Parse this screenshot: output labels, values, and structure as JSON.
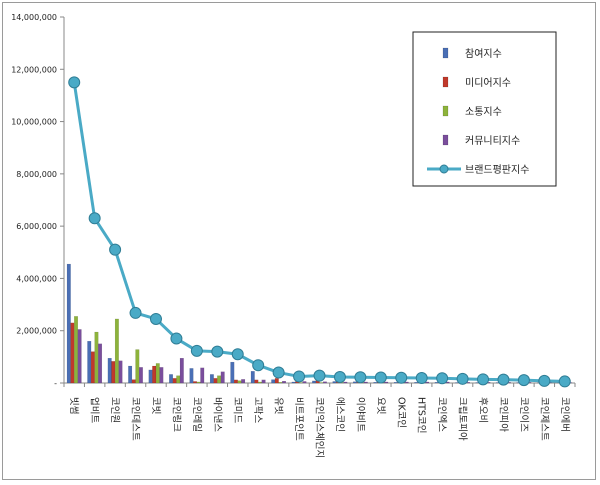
{
  "chart_data": {
    "type": "bar",
    "title": "",
    "xlabel": "",
    "ylabel": "",
    "ylim": [
      0,
      14000000
    ],
    "yticks": [
      0,
      2000000,
      4000000,
      6000000,
      8000000,
      10000000,
      12000000,
      14000000
    ],
    "ytick_labels": [
      "-",
      "2,000,000",
      "4,000,000",
      "6,000,000",
      "8,000,000",
      "10,000,000",
      "12,000,000",
      "14,000,000"
    ],
    "grid": false,
    "legend_position": "top-right",
    "categories": [
      "빗썸",
      "업비트",
      "코인원",
      "코인데스트",
      "코빗",
      "코인링크",
      "코인레일",
      "바이낸스",
      "코미드",
      "고팍스",
      "유빗",
      "비트포인트",
      "코인익스체인지",
      "에스코인",
      "이야비트",
      "요빗",
      "OK코인",
      "HTS코인",
      "코인엑스",
      "크립토피아",
      "후오비",
      "코인피아",
      "코인이즈",
      "코인제스트",
      "코인에버"
    ],
    "series": [
      {
        "name": "참여지수",
        "type": "bar",
        "color": "#4a6fb5",
        "values": [
          4550000,
          1600000,
          950000,
          650000,
          500000,
          330000,
          560000,
          330000,
          800000,
          450000,
          130000,
          40000,
          80000,
          60000,
          50000,
          30000,
          30000,
          30000,
          30000,
          20000,
          20000,
          20000,
          20000,
          10000,
          10000
        ]
      },
      {
        "name": "미디어지수",
        "type": "bar",
        "color": "#c0392b",
        "values": [
          2300000,
          1200000,
          830000,
          130000,
          650000,
          180000,
          60000,
          180000,
          120000,
          120000,
          180000,
          80000,
          140000,
          70000,
          60000,
          60000,
          60000,
          60000,
          60000,
          50000,
          50000,
          50000,
          50000,
          40000,
          30000
        ]
      },
      {
        "name": "소통지수",
        "type": "bar",
        "color": "#8db33b",
        "values": [
          2550000,
          1950000,
          2450000,
          1280000,
          750000,
          280000,
          40000,
          280000,
          90000,
          40000,
          30000,
          20000,
          20000,
          20000,
          10000,
          10000,
          10000,
          10000,
          10000,
          10000,
          10000,
          10000,
          10000,
          10000,
          10000
        ]
      },
      {
        "name": "커뮤니티지수",
        "type": "bar",
        "color": "#7a4e9c",
        "values": [
          2050000,
          1500000,
          850000,
          600000,
          600000,
          950000,
          580000,
          430000,
          140000,
          120000,
          70000,
          60000,
          50000,
          40000,
          40000,
          40000,
          40000,
          40000,
          40000,
          30000,
          30000,
          30000,
          30000,
          20000,
          20000
        ]
      },
      {
        "name": "브랜드평판지수",
        "type": "line",
        "color": "#4aaac6",
        "values": [
          11500000,
          6300000,
          5100000,
          2680000,
          2450000,
          1700000,
          1230000,
          1200000,
          1100000,
          680000,
          400000,
          250000,
          280000,
          230000,
          220000,
          210000,
          200000,
          190000,
          180000,
          160000,
          140000,
          130000,
          110000,
          80000,
          60000
        ]
      }
    ]
  }
}
